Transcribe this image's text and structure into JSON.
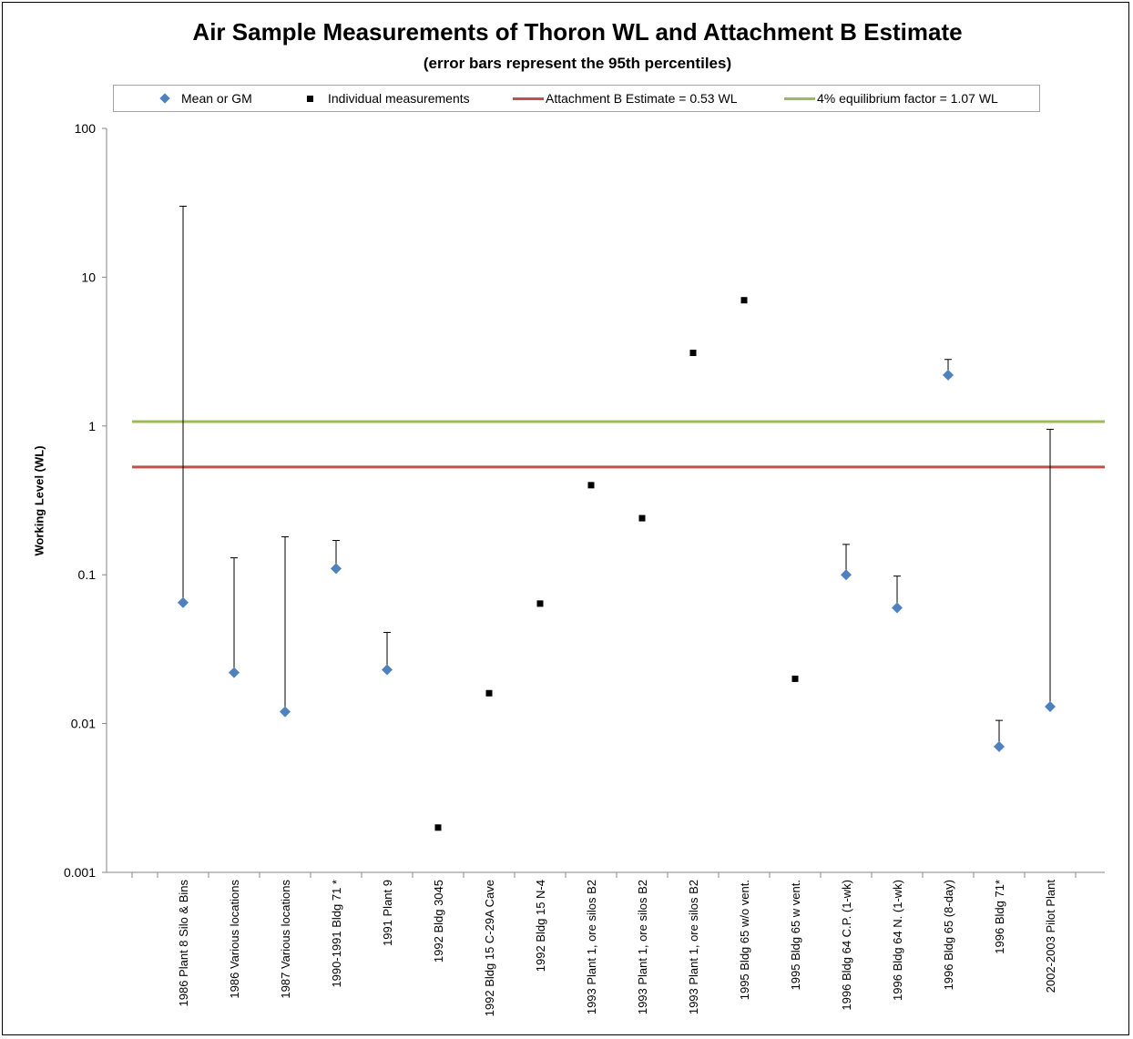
{
  "chart_data": {
    "type": "scatter",
    "title": "Air Sample Measurements of Thoron WL and Attachment B Estimate",
    "subtitle": "(error bars represent the 95th percentiles)",
    "xlabel": "",
    "ylabel": "Working Level (WL)",
    "y_scale": "log",
    "ylim": [
      0.001,
      100
    ],
    "y_ticks": [
      "100",
      "10",
      "1",
      "0.1",
      "0.01",
      "0.001"
    ],
    "categories": [
      "1986 Plant 8 Silo & Bins",
      "1986 Various locations",
      "1987 Various locations",
      "1990-1991 Bldg 71 *",
      "1991 Plant 9",
      "1992 Bldg 3045",
      "1992 Bldg 15 C-29A Cave",
      "1992 Bldg 15 N-4",
      "1993 Plant 1, ore silos B2",
      "1993 Plant 1, ore silos B2",
      "1993 Plant 1, ore silos B2",
      "1995 Bldg 65 w/o vent.",
      "1995 Bldg 65 w vent.",
      "1996 Bldg 64 C.P. (1-wk)",
      "1996 Bldg 64 N. (1-wk)",
      "1996 Bldg 65 (8-day)",
      "1996 Bldg 71*",
      "2002-2003 Pilot Plant"
    ],
    "legend_position": "top",
    "grid": false,
    "series": [
      {
        "name": "Mean or GM",
        "marker": "diamond",
        "color": "#4f81bd",
        "points": [
          {
            "category": 0,
            "y": 0.065,
            "upper": 30
          },
          {
            "category": 1,
            "y": 0.022,
            "upper": 0.13
          },
          {
            "category": 2,
            "y": 0.012,
            "upper": 0.18
          },
          {
            "category": 3,
            "y": 0.11,
            "upper": 0.17
          },
          {
            "category": 4,
            "y": 0.023,
            "upper": 0.041
          },
          {
            "category": 13,
            "y": 0.1,
            "upper": 0.16
          },
          {
            "category": 14,
            "y": 0.06,
            "upper": 0.098
          },
          {
            "category": 15,
            "y": 2.2,
            "upper": 2.8
          },
          {
            "category": 16,
            "y": 0.007,
            "upper": 0.0105
          },
          {
            "category": 17,
            "y": 0.013,
            "upper": 0.95
          }
        ]
      },
      {
        "name": "Individual measurements",
        "marker": "square",
        "color": "#000000",
        "points": [
          {
            "category": 5,
            "y": 0.002
          },
          {
            "category": 6,
            "y": 0.016
          },
          {
            "category": 7,
            "y": 0.064
          },
          {
            "category": 8,
            "y": 0.4
          },
          {
            "category": 9,
            "y": 0.24
          },
          {
            "category": 10,
            "y": 3.1
          },
          {
            "category": 11,
            "y": 7.0
          },
          {
            "category": 12,
            "y": 0.02
          }
        ]
      }
    ],
    "reference_lines": [
      {
        "name": "Attachment B Estimate  = 0.53 WL",
        "y": 0.53,
        "color": "#c0504d"
      },
      {
        "name": "4% equilibrium factor = 1.07 WL",
        "y": 1.07,
        "color": "#9bbb59"
      }
    ]
  }
}
